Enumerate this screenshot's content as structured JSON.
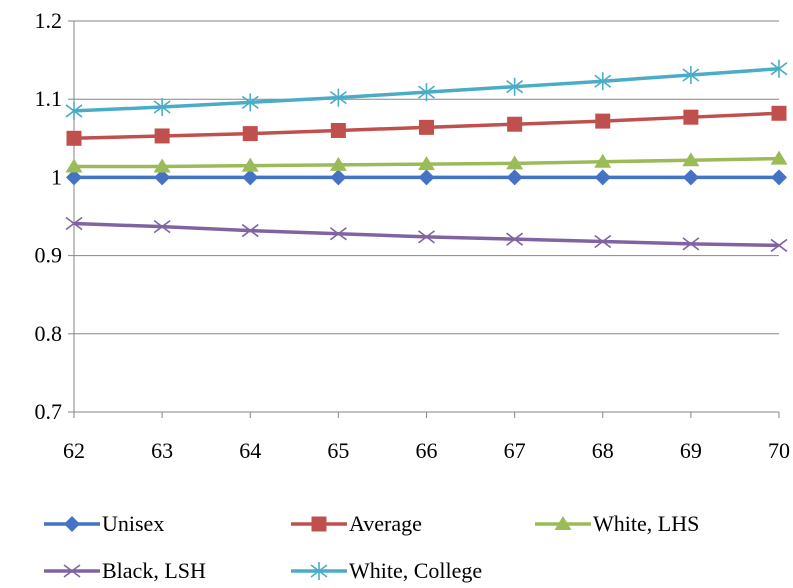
{
  "chart_data": {
    "type": "line",
    "title": "",
    "xlabel": "",
    "ylabel": "",
    "x": [
      62,
      63,
      64,
      65,
      66,
      67,
      68,
      69,
      70
    ],
    "xticks": [
      "62",
      "63",
      "64",
      "65",
      "66",
      "67",
      "68",
      "69",
      "70"
    ],
    "ylim": [
      0.7,
      1.2
    ],
    "yticks": [
      "0.7",
      "0.8",
      "0.9",
      "1",
      "1.1",
      "1.2"
    ],
    "ytick_values": [
      0.7,
      0.8,
      0.9,
      1.0,
      1.1,
      1.2
    ],
    "grid": "horizontal",
    "legend_position": "bottom",
    "series": [
      {
        "name": "Unisex",
        "color": "#4472c4",
        "marker": "diamond",
        "values": [
          1.0,
          1.0,
          1.0,
          1.0,
          1.0,
          1.0,
          1.0,
          1.0,
          1.0
        ]
      },
      {
        "name": "Average",
        "color": "#c0504d",
        "marker": "square",
        "values": [
          1.05,
          1.053,
          1.056,
          1.06,
          1.064,
          1.068,
          1.072,
          1.077,
          1.082
        ]
      },
      {
        "name": "White, LHS",
        "color": "#9bbb59",
        "marker": "triangle",
        "values": [
          1.014,
          1.014,
          1.015,
          1.016,
          1.017,
          1.018,
          1.02,
          1.022,
          1.024
        ]
      },
      {
        "name": "Black, LSH",
        "color": "#8064a2",
        "marker": "x",
        "values": [
          0.941,
          0.937,
          0.932,
          0.928,
          0.924,
          0.921,
          0.918,
          0.915,
          0.913
        ]
      },
      {
        "name": "White, College",
        "color": "#4bacc6",
        "marker": "star",
        "values": [
          1.085,
          1.09,
          1.096,
          1.102,
          1.109,
          1.116,
          1.123,
          1.131,
          1.139
        ]
      }
    ]
  }
}
